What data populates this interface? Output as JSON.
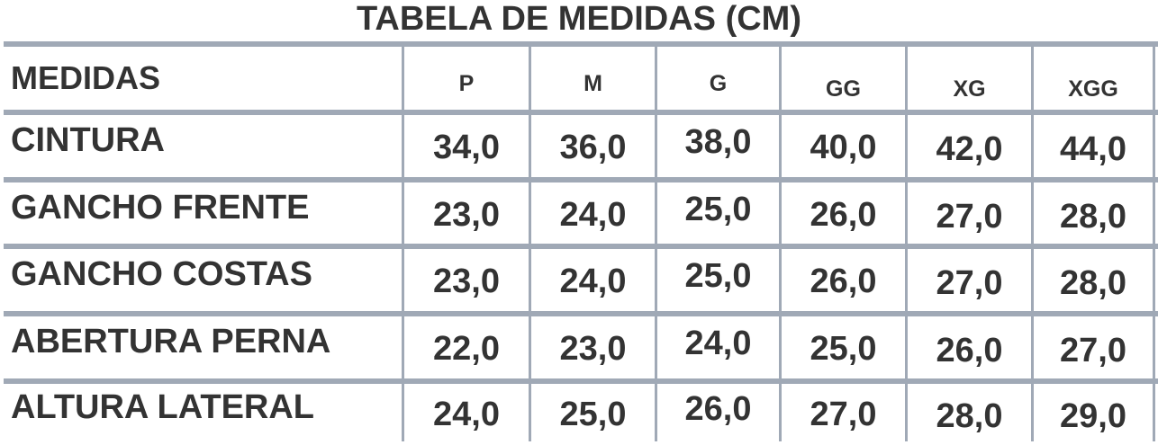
{
  "title": "TABELA DE MEDIDAS (CM)",
  "header": {
    "label": "MEDIDAS",
    "sizes": [
      "P",
      "M",
      "G",
      "GG",
      "XG",
      "XGG"
    ]
  },
  "rows": [
    {
      "label": "CINTURA",
      "values": [
        "34,0",
        "36,0",
        "38,0",
        "40,0",
        "42,0",
        "44,0"
      ]
    },
    {
      "label": "GANCHO FRENTE",
      "values": [
        "23,0",
        "24,0",
        "25,0",
        "26,0",
        "27,0",
        "28,0"
      ]
    },
    {
      "label": "GANCHO COSTAS",
      "values": [
        "23,0",
        "24,0",
        "25,0",
        "26,0",
        "27,0",
        "28,0"
      ]
    },
    {
      "label": "ABERTURA PERNA",
      "values": [
        "22,0",
        "23,0",
        "24,0",
        "25,0",
        "26,0",
        "27,0"
      ]
    },
    {
      "label": "ALTURA LATERAL",
      "values": [
        "24,0",
        "25,0",
        "26,0",
        "27,0",
        "28,0",
        "29,0"
      ]
    }
  ],
  "colors": {
    "text": "#333333",
    "grid": "#a0a9b6"
  }
}
